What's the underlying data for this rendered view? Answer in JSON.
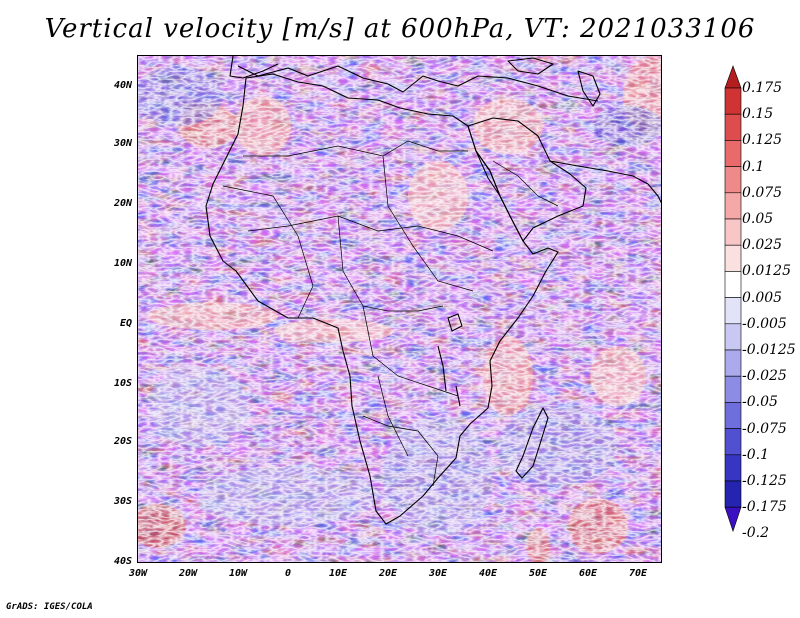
{
  "title": "Vertical velocity [m/s] at 600hPa, VT: 2021033106",
  "credit": "GrADS: IGES/COLA",
  "map": {
    "projection": "latlon",
    "lon_range": [
      -30,
      75
    ],
    "lat_range": [
      -40,
      45
    ],
    "lat_ticks": [
      "40N",
      "30N",
      "20N",
      "10N",
      "EQ",
      "10S",
      "20S",
      "30S",
      "40S"
    ],
    "lon_ticks": [
      "30W",
      "20W",
      "10W",
      "0",
      "10E",
      "20E",
      "30E",
      "40E",
      "50E",
      "60E",
      "70E"
    ],
    "field": "vertical velocity",
    "level": "600hPa",
    "units": "m/s",
    "valid_time": "2021033106"
  },
  "colorbar": {
    "labels": [
      "0.175",
      "0.15",
      "0.125",
      "0.1",
      "0.075",
      "0.05",
      "0.025",
      "0.0125",
      "0.005",
      "-0.005",
      "-0.0125",
      "-0.025",
      "-0.05",
      "-0.075",
      "-0.1",
      "-0.125",
      "-0.175",
      "-0.2"
    ],
    "colors": [
      "#b41e1e",
      "#cf3333",
      "#de4d4d",
      "#e86a6a",
      "#ef8a8a",
      "#f4a8a8",
      "#f8c6c6",
      "#fbe0e0",
      "#ffffff",
      "#e2e2f8",
      "#c8c8f2",
      "#aaaaec",
      "#8c8ce4",
      "#6e6edc",
      "#5050d0",
      "#3636c2",
      "#2424b0",
      "#3a10c0"
    ]
  }
}
